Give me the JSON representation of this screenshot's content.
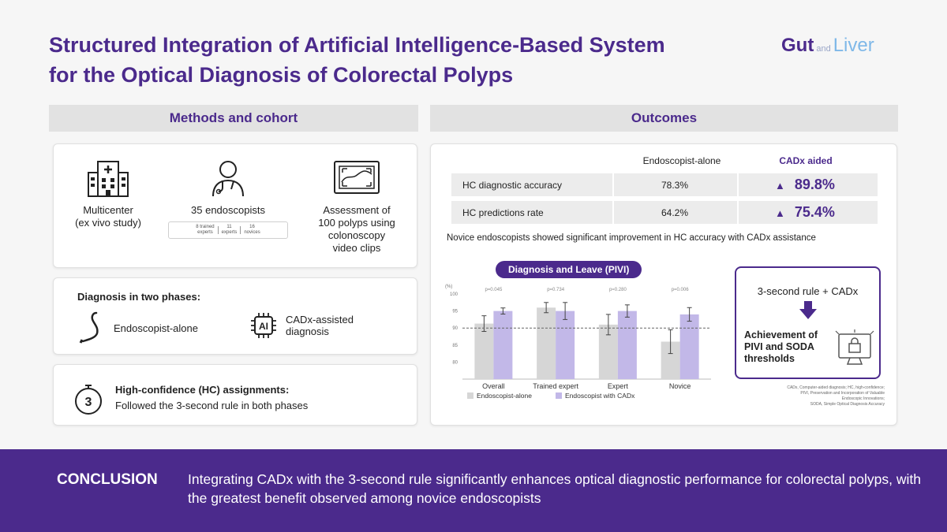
{
  "title": {
    "line1": "Structured Integration of Artificial Intelligence-Based System",
    "line2": "for the Optical Diagnosis of Colorectal Polyps"
  },
  "logo": {
    "gut": "Gut",
    "and": "and",
    "liver": "Liver"
  },
  "methods": {
    "heading": "Methods and cohort",
    "items": [
      {
        "icon": "hospital-icon",
        "text": [
          "Multicenter",
          "(ex vivo study)"
        ]
      },
      {
        "icon": "doctor-icon",
        "text": [
          "35 endoscopists"
        ],
        "stats": [
          [
            "8 trained",
            "experts"
          ],
          [
            "11",
            "experts"
          ],
          [
            "16",
            "novices"
          ]
        ]
      },
      {
        "icon": "monitor-icon",
        "text": [
          "Assessment of",
          "100 polyps using",
          "colonoscopy",
          "video clips"
        ]
      }
    ],
    "phases": {
      "title": "Diagnosis in two phases:",
      "items": [
        {
          "icon": "endoscope-icon",
          "text": [
            "Endoscopist-alone"
          ]
        },
        {
          "icon": "ai-chip-icon",
          "badge": "AI",
          "text": [
            "CADx-assisted",
            "diagnosis"
          ]
        }
      ]
    },
    "hc": {
      "badge": "3",
      "title": "High-confidence (HC) assignments:",
      "desc": "Followed the 3-second rule in both phases"
    }
  },
  "outcomes": {
    "heading": "Outcomes",
    "table": {
      "col1": "Endoscopist-alone",
      "col2": "CADx aided",
      "rows": [
        {
          "label": "HC diagnostic accuracy",
          "alone": "78.3%",
          "cadx": "89.8%"
        },
        {
          "label": "HC predictions rate",
          "alone": "64.2%",
          "cadx": "75.4%"
        }
      ]
    },
    "note": "Novice endoscopists showed significant improvement in HC accuracy with CADx assistance",
    "chart_pill": "Diagnosis and Leave (PIVI)",
    "rule_box": {
      "title": "3-second rule + CADx",
      "achievement": [
        "Achievement of",
        "PIVI and SODA",
        "thresholds"
      ]
    },
    "abbrev": [
      "CADx, Computer-aided diagnosis; HC, high-confidence;",
      "PIVI, Preservation and Incorporation of Valuable",
      "Endoscopic Innovations;",
      "SODA, Simple Optical Diagnosis Accuracy"
    ]
  },
  "chart_data": {
    "type": "bar",
    "title": "Diagnosis and Leave (PIVI)",
    "ylabel": "(%)",
    "ylim": [
      75,
      100
    ],
    "yticks": [
      "100",
      "95",
      "90",
      "85",
      "80"
    ],
    "threshold": 90,
    "categories": [
      "Overall",
      "Trained expert",
      "Expert",
      "Novice"
    ],
    "pvalues": [
      "p=0.045",
      "p=0.734",
      "p=0.280",
      "p=0.006"
    ],
    "series": [
      {
        "name": "Endoscopist-alone",
        "color": "#d6d6d6",
        "values": [
          91.3,
          96.0,
          91.0,
          86.0
        ],
        "err": [
          2.3,
          1.5,
          3.0,
          3.5
        ]
      },
      {
        "name": "Endoscopist with CADx",
        "color": "#c2b8e8",
        "values": [
          95.0,
          95.0,
          95.0,
          94.0
        ],
        "err": [
          0.9,
          2.5,
          1.8,
          2.0
        ]
      }
    ]
  },
  "conclusion": {
    "label": "CONCLUSION",
    "text": "Integrating CADx with the 3-second rule significantly enhances optical diagnostic performance for colorectal polyps, with the greatest benefit observed among novice endoscopists"
  },
  "colors": {
    "primary": "#4b2a8c",
    "alone_bar": "#d6d6d6",
    "cadx_bar": "#c2b8e8"
  }
}
